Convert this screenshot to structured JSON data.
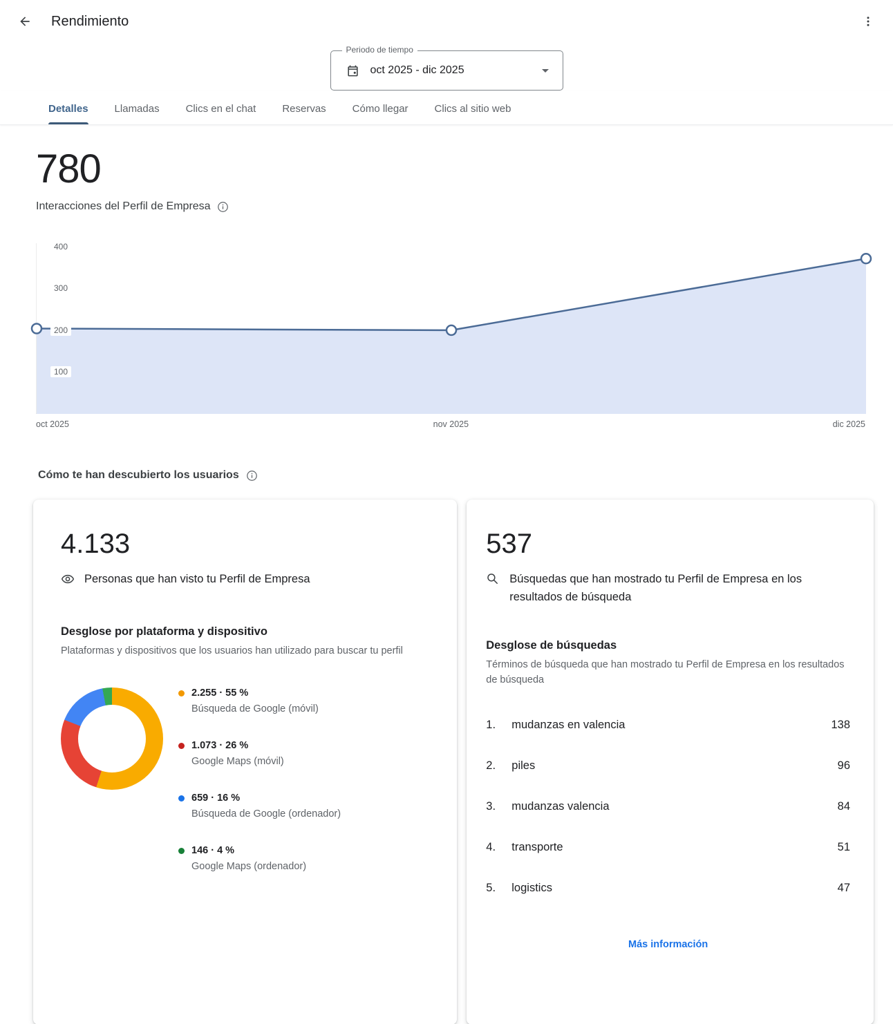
{
  "header": {
    "title": "Rendimiento"
  },
  "icons": {
    "back": "arrow-left",
    "menu": "kebab-vertical",
    "calendar": "calendar",
    "dropdown": "caret-down",
    "info": "info-circle",
    "views": "eye",
    "searches": "magnifier"
  },
  "colors": {
    "accent_tab": "#40658c",
    "line": "#4b6b96",
    "area_fill": "#dde5f7",
    "link": "#1a73e8",
    "text": "#202124",
    "secondary": "#5f6368"
  },
  "period": {
    "label": "Periodo de tiempo",
    "value": "oct 2025 - dic 2025"
  },
  "tabs": [
    {
      "label": "Detalles",
      "active": true
    },
    {
      "label": "Llamadas",
      "active": false
    },
    {
      "label": "Clics en el chat",
      "active": false
    },
    {
      "label": "Reservas",
      "active": false
    },
    {
      "label": "Cómo llegar",
      "active": false
    },
    {
      "label": "Clics al sitio web",
      "active": false
    }
  ],
  "interactions": {
    "value": "780",
    "label": "Interacciones del Perfil de Empresa"
  },
  "chart_data": [
    {
      "type": "area",
      "title": "Interacciones del Perfil de Empresa",
      "x": [
        "oct 2025",
        "nov 2025",
        "dic 2025"
      ],
      "series": [
        {
          "name": "Interacciones",
          "values": [
            205,
            201,
            373
          ]
        }
      ],
      "ylim": [
        0,
        410
      ],
      "yticks": [
        100,
        200,
        300,
        400
      ],
      "grid": false,
      "line_color": "#4b6b96",
      "fill_color": "#dde5f7",
      "marker": "open-circle"
    },
    {
      "type": "pie",
      "title": "Desglose por plataforma y dispositivo",
      "categories": [
        "Búsqueda de Google (móvil)",
        "Google Maps (móvil)",
        "Búsqueda de Google (ordenador)",
        "Google Maps (ordenador)"
      ],
      "values": [
        2255,
        1073,
        659,
        146
      ],
      "percents": [
        55,
        26,
        16,
        4
      ],
      "colors": [
        "#F9AB00",
        "#E64335",
        "#4285F4",
        "#34A853"
      ],
      "dot_colors": [
        "#F29900",
        "#C5221F",
        "#1A73E8",
        "#188038"
      ],
      "legend_position": "right",
      "donut": true
    }
  ],
  "discovery": {
    "heading": "Cómo te han descubierto los usuarios"
  },
  "views_card": {
    "value": "4.133",
    "label": "Personas que han visto tu Perfil de Empresa",
    "subhead": "Desglose por plataforma y dispositivo",
    "desc": "Plataformas y dispositivos que los usuarios han utilizado para buscar tu perfil",
    "legend": [
      {
        "value_line": "2.255 · 55 %",
        "label": "Búsqueda de Google (móvil)"
      },
      {
        "value_line": "1.073 · 26 %",
        "label": "Google Maps (móvil)"
      },
      {
        "value_line": "659 · 16 %",
        "label": "Búsqueda de Google (ordenador)"
      },
      {
        "value_line": "146 · 4 %",
        "label": "Google Maps (ordenador)"
      }
    ]
  },
  "searches_card": {
    "value": "537",
    "label": "Búsquedas que han mostrado tu Perfil de Empresa en los resultados de búsqueda",
    "subhead": "Desglose de búsquedas",
    "desc": "Términos de búsqueda que han mostrado tu Perfil de Empresa en los resultados de búsqueda",
    "terms": [
      {
        "rank": "1.",
        "term": "mudanzas en valencia",
        "count": "138"
      },
      {
        "rank": "2.",
        "term": "piles",
        "count": "96"
      },
      {
        "rank": "3.",
        "term": "mudanzas valencia",
        "count": "84"
      },
      {
        "rank": "4.",
        "term": "transporte",
        "count": "51"
      },
      {
        "rank": "5.",
        "term": "logistics",
        "count": "47"
      }
    ],
    "more_label": "Más información"
  }
}
